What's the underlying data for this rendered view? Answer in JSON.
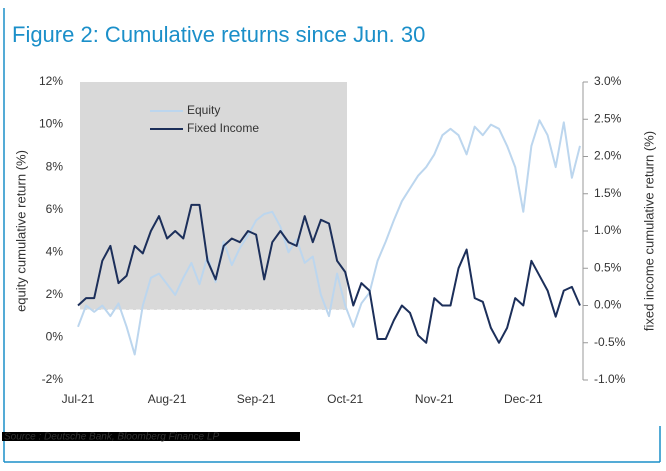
{
  "chart_data": {
    "type": "line",
    "title": "Figure 2: Cumulative returns since Jun. 30",
    "ylabel": "equity cumulative return (%)",
    "y2label": "fixed income cumulative return (%)",
    "source": "Source : Deutsche Bank, Bloomberg Finance LP",
    "categories": [
      "Jul-21",
      null,
      null,
      null,
      null,
      null,
      null,
      null,
      null,
      null,
      null,
      "Aug-21",
      null,
      null,
      null,
      null,
      null,
      null,
      null,
      null,
      null,
      null,
      "Sep-21",
      null,
      null,
      null,
      null,
      null,
      null,
      null,
      null,
      null,
      null,
      "Oct-21",
      null,
      null,
      null,
      null,
      null,
      null,
      null,
      null,
      null,
      null,
      "Nov-21",
      null,
      null,
      null,
      null,
      null,
      null,
      null,
      null,
      null,
      null,
      "Dec-21",
      null,
      null,
      null,
      null,
      null,
      null,
      null
    ],
    "series": [
      {
        "name": "Equity",
        "color": "#bcd6ee",
        "values": [
          0.5,
          1.5,
          1.2,
          1.5,
          1.0,
          1.6,
          0.5,
          -0.8,
          1.5,
          2.8,
          3.0,
          2.5,
          2.0,
          2.8,
          3.5,
          2.5,
          3.8,
          2.6,
          4.5,
          3.4,
          4.2,
          4.8,
          5.5,
          5.8,
          5.9,
          5.2,
          4.0,
          4.6,
          3.5,
          3.8,
          2.0,
          1.0,
          3.0,
          1.5,
          0.5,
          1.6,
          2.1,
          3.6,
          4.5,
          5.5,
          6.4,
          7.0,
          7.6,
          8.0,
          8.6,
          9.5,
          9.8,
          9.5,
          8.6,
          9.9,
          9.5,
          10.0,
          9.8,
          9.0,
          8.0,
          5.9,
          9.0,
          10.2,
          9.5,
          8.0,
          10.1,
          7.5,
          9.0
        ]
      },
      {
        "name": "Fixed Income",
        "color": "#1c2f5a",
        "axis": "y2",
        "values": [
          0.0,
          0.1,
          0.1,
          0.6,
          0.8,
          0.3,
          0.4,
          0.8,
          0.7,
          1.0,
          1.2,
          0.9,
          1.0,
          0.9,
          1.35,
          1.35,
          0.6,
          0.35,
          0.8,
          0.9,
          0.85,
          1.0,
          0.95,
          0.35,
          0.85,
          1.0,
          0.85,
          0.8,
          1.2,
          0.85,
          1.15,
          1.1,
          0.6,
          0.45,
          0.0,
          0.3,
          0.2,
          -0.45,
          -0.45,
          -0.2,
          0.0,
          -0.1,
          -0.4,
          -0.5,
          0.1,
          0.0,
          0.0,
          0.5,
          0.75,
          0.1,
          0.05,
          -0.3,
          -0.5,
          -0.3,
          0.1,
          0.0,
          0.6,
          0.4,
          0.2,
          -0.15,
          0.2,
          0.25,
          0.0
        ]
      }
    ],
    "ylim": [
      -2,
      12
    ],
    "yticks": [
      {
        "value": -2,
        "label": "-2%"
      },
      {
        "value": 0,
        "label": "0%"
      },
      {
        "value": 2,
        "label": "2%"
      },
      {
        "value": 4,
        "label": "4%"
      },
      {
        "value": 6,
        "label": "6%"
      },
      {
        "value": 8,
        "label": "8%"
      },
      {
        "value": 10,
        "label": "10%"
      },
      {
        "value": 12,
        "label": "12%"
      }
    ],
    "y2lim": [
      -1,
      3
    ],
    "y2ticks": [
      {
        "value": -1,
        "label": "-1.0%"
      },
      {
        "value": -0.5,
        "label": "-0.5%"
      },
      {
        "value": 0,
        "label": "0.0%"
      },
      {
        "value": 0.5,
        "label": "0.5%"
      },
      {
        "value": 1,
        "label": "1.0%"
      },
      {
        "value": 1.5,
        "label": "1.5%"
      },
      {
        "value": 2,
        "label": "2.0%"
      },
      {
        "value": 2.5,
        "label": "2.5%"
      },
      {
        "value": 3,
        "label": "3.0%"
      }
    ],
    "legend": "upper left"
  }
}
